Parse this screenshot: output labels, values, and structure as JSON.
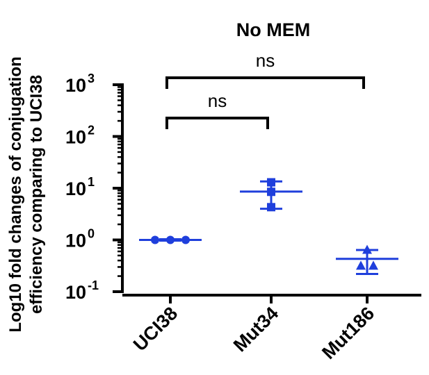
{
  "chart_data": {
    "type": "scatter",
    "title": "No MEM",
    "ylabel": [
      "Log10 fold changes of conjugation",
      "efficiency comparing to UCI38"
    ],
    "xlabel": "",
    "y_scale": "log",
    "ylim": [
      0.1,
      1000
    ],
    "y_ticks": [
      {
        "base": "10",
        "exp": "-1"
      },
      {
        "base": "10",
        "exp": "0"
      },
      {
        "base": "10",
        "exp": "1"
      },
      {
        "base": "10",
        "exp": "2"
      },
      {
        "base": "10",
        "exp": "3"
      }
    ],
    "categories": [
      "UCI38",
      "Mut34",
      "Mut186"
    ],
    "series_color": "#1f3fdc",
    "groups": [
      {
        "category": "UCI38",
        "marker": "circle",
        "points": [
          1.0,
          1.0,
          1.0
        ],
        "mean": 1.0,
        "error": [
          0.97,
          1.03
        ]
      },
      {
        "category": "Mut34",
        "marker": "square",
        "points": [
          13.0,
          8.5,
          4.3
        ],
        "mean": 8.6,
        "error": [
          4.0,
          13.5
        ]
      },
      {
        "category": "Mut186",
        "marker": "triangle",
        "points": [
          0.65,
          0.32,
          0.32
        ],
        "mean": 0.43,
        "error": [
          0.22,
          0.64
        ]
      }
    ],
    "annotations": [
      {
        "text": "ns",
        "from": "UCI38",
        "to": "Mut34"
      },
      {
        "text": "ns",
        "from": "UCI38",
        "to": "Mut186"
      }
    ]
  }
}
